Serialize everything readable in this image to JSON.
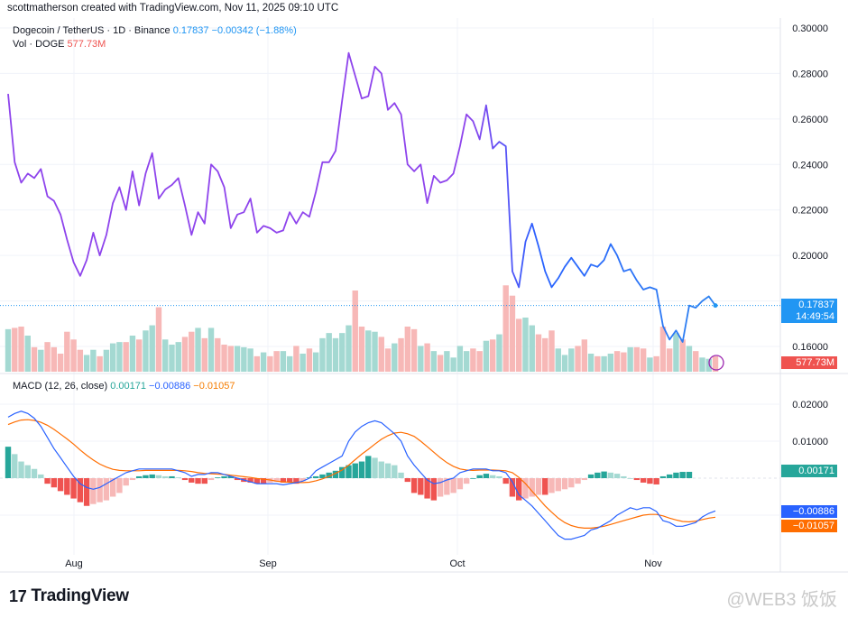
{
  "credit": "scottmatherson created with TradingView.com, Nov 11, 2025 09:10 UTC",
  "header": {
    "symbol": "Dogecoin / TetherUS · 1D · Binance",
    "last": "0.17837",
    "change": "−0.00342 (−1.88%)",
    "vol_label": "Vol · DOGE",
    "vol_value": "577.73M"
  },
  "macd_header": {
    "label": "MACD (12, 26, close)",
    "hist": "0.00171",
    "macd": "−0.00886",
    "signal": "−0.01057"
  },
  "price_tags": {
    "price": "0.17837",
    "countdown": "14:49:54",
    "volume": "577.73M"
  },
  "macd_tags": {
    "hist": "0.00171",
    "macd": "−0.00886",
    "signal": "−0.01057"
  },
  "brand": "TradingView",
  "watermark": "@WEB3 饭饭",
  "colors": {
    "up": "#26a69a",
    "down": "#ef5350",
    "up_light": "#a4d9d2",
    "down_light": "#f7b8b7",
    "price_purple": "#8e44ec",
    "price_blue": "#2962ff",
    "macd": "#2962ff",
    "signal": "#ff6d00",
    "last_tag": "#2196f3"
  },
  "chart_data": [
    {
      "type": "line",
      "name": "price",
      "y_ticks": [
        "0.30000",
        "0.28000",
        "0.26000",
        "0.24000",
        "0.22000",
        "0.20000",
        "0.16000"
      ],
      "ylim": [
        0.152,
        0.303
      ],
      "x_ticks": [
        "Aug",
        "Sep",
        "Oct",
        "Nov"
      ],
      "values": [
        0.271,
        0.241,
        0.232,
        0.236,
        0.234,
        0.238,
        0.226,
        0.224,
        0.218,
        0.207,
        0.197,
        0.191,
        0.198,
        0.21,
        0.2,
        0.209,
        0.223,
        0.23,
        0.22,
        0.237,
        0.222,
        0.236,
        0.245,
        0.225,
        0.229,
        0.231,
        0.234,
        0.222,
        0.209,
        0.219,
        0.214,
        0.24,
        0.237,
        0.23,
        0.212,
        0.218,
        0.219,
        0.225,
        0.21,
        0.213,
        0.212,
        0.21,
        0.211,
        0.219,
        0.214,
        0.219,
        0.217,
        0.228,
        0.241,
        0.241,
        0.246,
        0.268,
        0.289,
        0.279,
        0.269,
        0.27,
        0.283,
        0.28,
        0.264,
        0.267,
        0.262,
        0.24,
        0.237,
        0.24,
        0.223,
        0.235,
        0.232,
        0.233,
        0.236,
        0.248,
        0.262,
        0.259,
        0.251,
        0.266,
        0.247,
        0.25,
        0.248,
        0.193,
        0.186,
        0.206,
        0.214,
        0.204,
        0.193,
        0.186,
        0.19,
        0.195,
        0.199,
        0.195,
        0.191,
        0.196,
        0.195,
        0.198,
        0.205,
        0.2,
        0.193,
        0.194,
        0.189,
        0.185,
        0.186,
        0.185,
        0.169,
        0.163,
        0.167,
        0.162,
        0.178,
        0.177,
        0.18,
        0.182,
        0.178
      ]
    },
    {
      "type": "bar",
      "name": "volume",
      "values": [
        3.3,
        3.4,
        3.5,
        2.8,
        1.9,
        1.7,
        2.3,
        1.9,
        1.4,
        3.1,
        2.5,
        1.7,
        1.3,
        1.7,
        1.2,
        1.7,
        2.2,
        2.3,
        2.3,
        2.8,
        2.5,
        3.2,
        3.6,
        5.0,
        2.5,
        2.1,
        2.3,
        2.7,
        3.1,
        3.4,
        2.6,
        3.4,
        2.6,
        2.1,
        2.0,
        2.0,
        1.9,
        1.8,
        1.2,
        1.5,
        1.2,
        1.6,
        1.6,
        1.2,
        2.0,
        1.4,
        1.8,
        1.5,
        2.6,
        3.0,
        2.6,
        3.0,
        3.6,
        6.3,
        3.5,
        3.2,
        3.1,
        2.7,
        1.8,
        2.2,
        2.6,
        3.5,
        3.3,
        2.0,
        2.2,
        1.6,
        1.3,
        1.6,
        1.1,
        2.0,
        1.6,
        1.8,
        1.6,
        2.4,
        2.5,
        2.9,
        6.7,
        5.9,
        4.1,
        4.2,
        3.6,
        2.9,
        2.6,
        3.2,
        1.8,
        1.3,
        1.8,
        2.0,
        2.5,
        1.4,
        1.2,
        1.2,
        1.4,
        1.6,
        1.5,
        1.9,
        1.9,
        1.8,
        1.1,
        1.2,
        3.5,
        1.8,
        3.0,
        2.5,
        2.0,
        1.6,
        1.1,
        1.0,
        1.2
      ],
      "units": "M"
    },
    {
      "type": "line",
      "name": "MACD (12, 26, close)",
      "y_ticks": [
        "0.02000",
        "0.01000"
      ],
      "ylim": [
        -0.0175,
        0.0225
      ],
      "macd": [
        0.0165,
        0.0175,
        0.0181,
        0.0175,
        0.0162,
        0.014,
        0.011,
        0.008,
        0.0055,
        0.003,
        0.0005,
        -0.0015,
        -0.0025,
        -0.003,
        -0.0025,
        -0.0015,
        -0.0005,
        0.0005,
        0.0015,
        0.002,
        0.0025,
        0.0025,
        0.0025,
        0.0025,
        0.0025,
        0.0025,
        0.002,
        0.0015,
        0.0005,
        0.001,
        0.001,
        0.0015,
        0.0015,
        0.001,
        0.0005,
        0,
        -0.0005,
        -0.001,
        -0.0015,
        -0.0015,
        -0.0015,
        -0.0015,
        -0.0018,
        -0.0015,
        -0.0012,
        -0.0008,
        0,
        0.002,
        0.003,
        0.004,
        0.005,
        0.006,
        0.01,
        0.0125,
        0.014,
        0.015,
        0.0155,
        0.015,
        0.0135,
        0.012,
        0.01,
        0.006,
        0.0035,
        0.0015,
        -0.0005,
        -0.0015,
        -0.0012,
        -0.0005,
        0,
        0.0015,
        0.002,
        0.0025,
        0.0025,
        0.0025,
        0.002,
        0.002,
        0.0015,
        -0.001,
        -0.0045,
        -0.006,
        -0.0075,
        -0.0095,
        -0.0115,
        -0.0135,
        -0.0155,
        -0.0165,
        -0.0165,
        -0.016,
        -0.0155,
        -0.014,
        -0.0135,
        -0.0125,
        -0.0115,
        -0.01,
        -0.009,
        -0.008,
        -0.0085,
        -0.008,
        -0.008,
        -0.009,
        -0.0115,
        -0.012,
        -0.013,
        -0.013,
        -0.0125,
        -0.012,
        -0.0105,
        -0.0095,
        -0.00886
      ],
      "signal": [
        0.0145,
        0.0152,
        0.0157,
        0.0158,
        0.0156,
        0.0151,
        0.0143,
        0.0132,
        0.0119,
        0.0106,
        0.0092,
        0.0076,
        0.0062,
        0.0049,
        0.0038,
        0.003,
        0.0024,
        0.0021,
        0.002,
        0.002,
        0.002,
        0.0021,
        0.0021,
        0.0021,
        0.0021,
        0.0021,
        0.0021,
        0.002,
        0.0018,
        0.0015,
        0.0013,
        0.0012,
        0.0011,
        0.001,
        0.0008,
        0.0006,
        0.0004,
        0.0002,
        -0.0001,
        -0.0003,
        -0.0005,
        -0.0008,
        -0.001,
        -0.0011,
        -0.0012,
        -0.0012,
        -0.0011,
        -0.0007,
        -0.0002,
        0.0005,
        0.0013,
        0.0022,
        0.0035,
        0.005,
        0.0065,
        0.0078,
        0.0092,
        0.0105,
        0.0115,
        0.0122,
        0.0124,
        0.012,
        0.0113,
        0.01,
        0.0085,
        0.007,
        0.0055,
        0.0042,
        0.0032,
        0.0025,
        0.0022,
        0.0021,
        0.0022,
        0.0022,
        0.0022,
        0.0021,
        0.002,
        0.0015,
        0.0002,
        -0.0015,
        -0.0035,
        -0.0055,
        -0.0075,
        -0.0092,
        -0.0108,
        -0.012,
        -0.0128,
        -0.0133,
        -0.0135,
        -0.0135,
        -0.0133,
        -0.013,
        -0.0125,
        -0.012,
        -0.0115,
        -0.011,
        -0.0105,
        -0.01,
        -0.0098,
        -0.0098,
        -0.0102,
        -0.0108,
        -0.0113,
        -0.0117,
        -0.0118,
        -0.0116,
        -0.0112,
        -0.0108,
        -0.01057
      ],
      "histogram": [
        0.0085,
        0.0065,
        0.0045,
        0.0035,
        0.0025,
        0.001,
        -0.0015,
        -0.0025,
        -0.0035,
        -0.0045,
        -0.0055,
        -0.0065,
        -0.0075,
        -0.007,
        -0.0065,
        -0.006,
        -0.005,
        -0.004,
        -0.002,
        -0.0005,
        0.0005,
        0.0008,
        0.001,
        0.0008,
        0.0005,
        0.0005,
        0.0002,
        -0.0005,
        -0.0012,
        -0.0015,
        -0.0015,
        -0.0005,
        0.0002,
        0.0005,
        0.0005,
        -0.0005,
        -0.001,
        -0.0012,
        -0.0015,
        -0.0015,
        -0.0012,
        -0.001,
        -0.0012,
        -0.0012,
        -0.0015,
        -0.0008,
        0.0002,
        0.0005,
        0.001,
        0.0015,
        0.002,
        0.003,
        0.0035,
        0.004,
        0.0045,
        0.006,
        0.0055,
        0.0045,
        0.004,
        0.0035,
        0.0015,
        -0.001,
        -0.004,
        -0.0045,
        -0.0055,
        -0.006,
        -0.005,
        -0.0045,
        -0.004,
        -0.003,
        -0.0015,
        0,
        0.0008,
        0.0012,
        0.0008,
        0.0005,
        -0.0015,
        -0.005,
        -0.006,
        -0.0055,
        -0.005,
        -0.0045,
        -0.0045,
        -0.004,
        -0.0035,
        -0.003,
        -0.0025,
        -0.0015,
        -0.0005,
        0.001,
        0.0015,
        0.0018,
        0.0015,
        0.0012,
        0.0005,
        0,
        -0.0005,
        -0.0012,
        -0.0015,
        -0.0017,
        0.0005,
        0.001,
        0.0015,
        0.0017,
        0.00171
      ]
    }
  ]
}
